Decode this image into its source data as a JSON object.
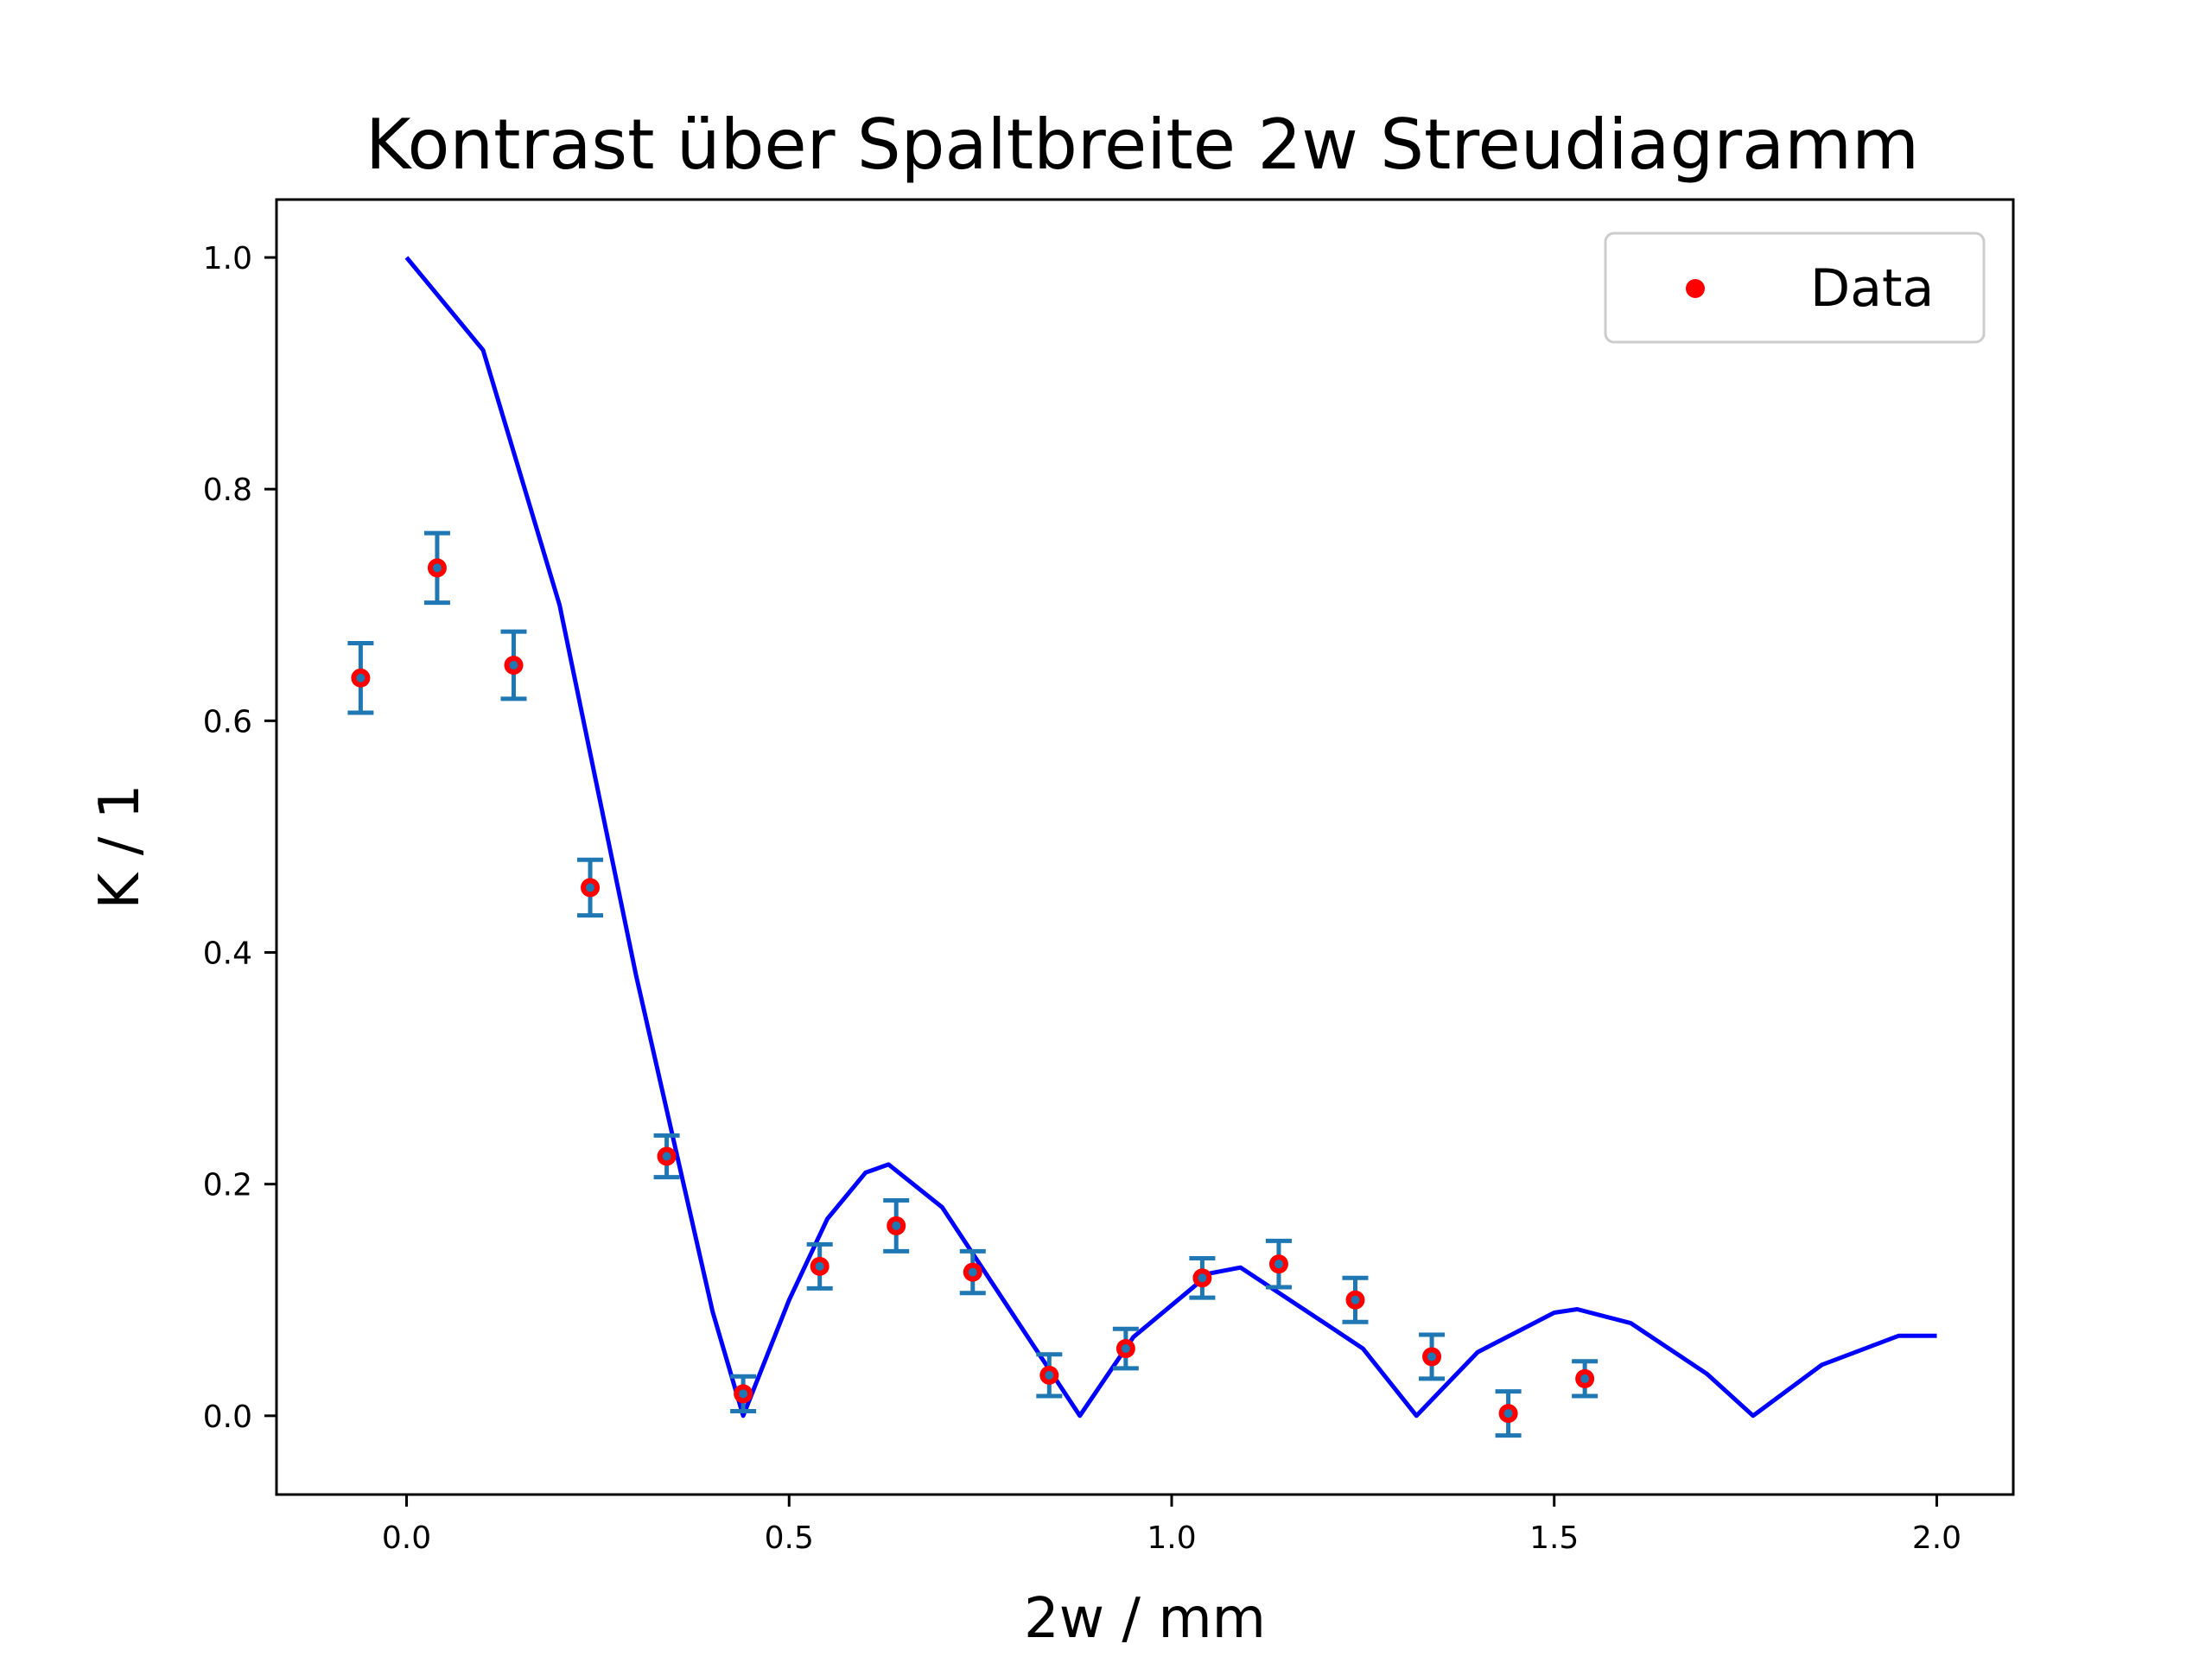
{
  "chart_data": {
    "type": "scatter",
    "title": "Kontrast über Spaltbreite 2w Streudiagramm",
    "xlabel": "2w / mm",
    "ylabel": "K / 1",
    "xlim": [
      -0.17,
      2.1
    ],
    "ylim": [
      -0.068,
      1.05
    ],
    "xticks": [
      0.0,
      0.5,
      1.0,
      1.5,
      2.0
    ],
    "xtick_labels": [
      "0.0",
      "0.5",
      "1.0",
      "1.5",
      "2.0"
    ],
    "yticks": [
      0.0,
      0.2,
      0.4,
      0.6,
      0.8,
      1.0
    ],
    "ytick_labels": [
      "0.0",
      "0.2",
      "0.4",
      "0.6",
      "0.8",
      "1.0"
    ],
    "grid": false,
    "legend": {
      "position": "top-right",
      "entries": [
        "Data"
      ]
    },
    "series": [
      {
        "name": "Data",
        "kind": "scatter-errorbar",
        "marker_color": "#ff0000",
        "errorbar_color": "#1f77b4",
        "x": [
          -0.06,
          0.04,
          0.14,
          0.24,
          0.34,
          0.44,
          0.54,
          0.64,
          0.74,
          0.84,
          0.94,
          1.04,
          1.14,
          1.24,
          1.34,
          1.44,
          1.54
        ],
        "y": [
          0.637,
          0.732,
          0.648,
          0.456,
          0.224,
          0.019,
          0.129,
          0.164,
          0.124,
          0.035,
          0.058,
          0.119,
          0.131,
          0.1,
          0.051,
          0.002,
          0.032
        ],
        "yerr": [
          0.03,
          0.03,
          0.029,
          0.024,
          0.018,
          0.015,
          0.019,
          0.022,
          0.018,
          0.018,
          0.017,
          0.017,
          0.02,
          0.019,
          0.019,
          0.019,
          0.015
        ]
      },
      {
        "kind": "line",
        "color": "#0000ff",
        "x": [
          0.0,
          0.1,
          0.2,
          0.3,
          0.4,
          0.44,
          0.5,
          0.55,
          0.6,
          0.63,
          0.7,
          0.8,
          0.88,
          0.95,
          1.05,
          1.09,
          1.2,
          1.25,
          1.32,
          1.4,
          1.5,
          1.53,
          1.6,
          1.7,
          1.76,
          1.85,
          1.95,
          2.0
        ],
        "y": [
          1.0,
          0.92,
          0.7,
          0.38,
          0.09,
          0.0,
          0.1,
          0.17,
          0.21,
          0.217,
          0.18,
          0.08,
          0.0,
          0.068,
          0.123,
          0.128,
          0.08,
          0.058,
          0.0,
          0.055,
          0.089,
          0.092,
          0.08,
          0.036,
          0.0,
          0.044,
          0.069,
          0.069
        ]
      }
    ]
  }
}
